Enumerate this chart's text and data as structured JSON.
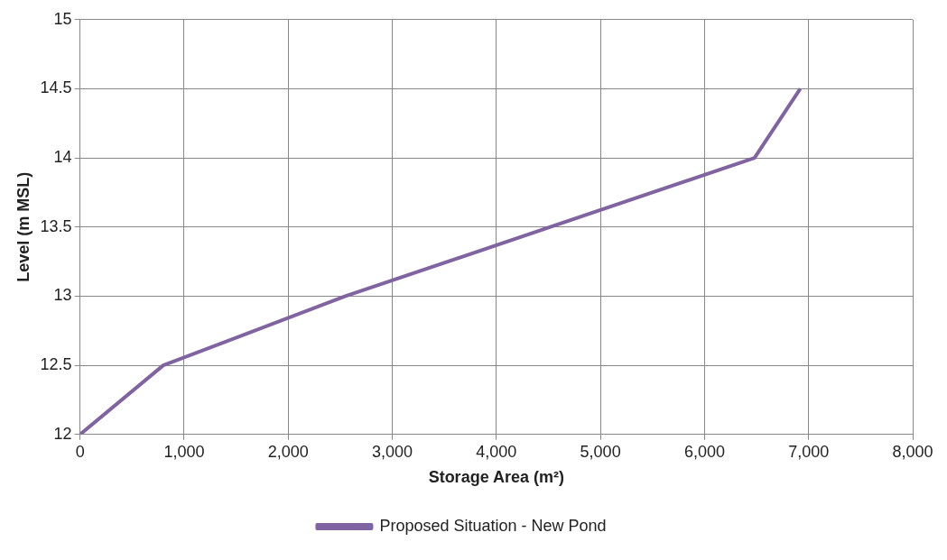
{
  "chart_data": {
    "type": "line",
    "xlabel": "Storage Area (m²)",
    "ylabel": "Level (m MSL)",
    "x": [
      0,
      800,
      2550,
      6480,
      6920
    ],
    "series": [
      {
        "name": "Proposed Situation - New Pond",
        "color": "#8064a2",
        "values": [
          12,
          12.5,
          13,
          14,
          14.5
        ]
      }
    ],
    "xlim": [
      0,
      8000
    ],
    "xticks": [
      {
        "value": 0,
        "label": "0"
      },
      {
        "value": 1000,
        "label": "1,000"
      },
      {
        "value": 2000,
        "label": "2,000"
      },
      {
        "value": 3000,
        "label": "3,000"
      },
      {
        "value": 4000,
        "label": "4,000"
      },
      {
        "value": 5000,
        "label": "5,000"
      },
      {
        "value": 6000,
        "label": "6,000"
      },
      {
        "value": 7000,
        "label": "7,000"
      },
      {
        "value": 8000,
        "label": "8,000"
      }
    ],
    "ylim": [
      12,
      15
    ],
    "yticks": [
      12,
      12.5,
      13,
      13.5,
      14,
      14.5,
      15
    ],
    "grid": true,
    "legend": "bottom",
    "marker": "none",
    "line_style": "solid"
  }
}
